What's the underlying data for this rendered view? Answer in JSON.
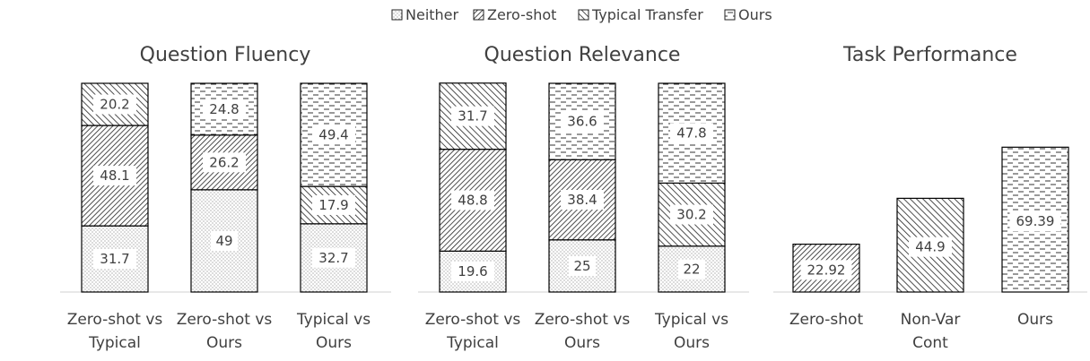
{
  "legend": [
    "Neither",
    "Zero-shot",
    "Typical Transfer",
    "Ours"
  ],
  "chart_data": [
    {
      "type": "bar",
      "stacked": true,
      "title": "Question Fluency",
      "categories": [
        [
          "Zero-shot vs",
          "Typical"
        ],
        [
          "Zero-shot vs",
          "Ours"
        ],
        [
          "Typical vs",
          "Ours"
        ]
      ],
      "ylim": [
        0,
        100
      ],
      "series": [
        {
          "name": "Neither",
          "values": [
            31.7,
            49,
            32.7
          ]
        },
        {
          "name": "Zero-shot",
          "values": [
            48.1,
            26.2,
            null
          ]
        },
        {
          "name": "Typical Transfer",
          "values": [
            20.2,
            null,
            17.9
          ]
        },
        {
          "name": "Ours",
          "values": [
            null,
            24.8,
            49.4
          ]
        }
      ]
    },
    {
      "type": "bar",
      "stacked": true,
      "title": "Question Relevance",
      "categories": [
        [
          "Zero-shot vs",
          "Typical"
        ],
        [
          "Zero-shot  vs",
          "Ours"
        ],
        [
          "Typical vs",
          "Ours"
        ]
      ],
      "ylim": [
        0,
        100
      ],
      "series": [
        {
          "name": "Neither",
          "values": [
            19.6,
            25,
            22
          ]
        },
        {
          "name": "Zero-shot",
          "values": [
            48.8,
            38.4,
            null
          ]
        },
        {
          "name": "Typical Transfer",
          "values": [
            31.7,
            null,
            30.2
          ]
        },
        {
          "name": "Ours",
          "values": [
            null,
            36.6,
            47.8
          ]
        }
      ]
    },
    {
      "type": "bar",
      "title": "Task Performance",
      "categories": [
        [
          "Zero-shot"
        ],
        [
          "Non-Var",
          "Cont"
        ],
        [
          "Ours"
        ]
      ],
      "values": [
        22.92,
        44.9,
        69.39
      ],
      "value_labels": [
        "22.92",
        "44.9",
        "69.39"
      ],
      "bar_series": [
        "Zero-shot",
        "Typical Transfer",
        "Ours"
      ],
      "ylim": [
        0,
        80
      ]
    }
  ],
  "stack_value_labels": [
    [
      [
        "31.7",
        "48.1",
        "20.2",
        null
      ],
      [
        "49",
        "26.2",
        null,
        "24.8"
      ],
      [
        "32.7",
        null,
        "17.9",
        "49.4"
      ]
    ],
    [
      [
        "19.6",
        "48.8",
        "31.7",
        null
      ],
      [
        "25",
        "38.4",
        null,
        "36.6"
      ],
      [
        "22",
        null,
        "30.2",
        "47.8"
      ]
    ]
  ]
}
